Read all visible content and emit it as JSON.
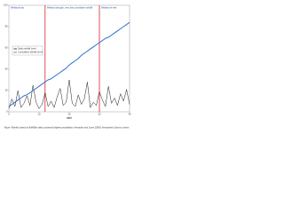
{
  "chart_data": {
    "type": "line",
    "annotations": [
      "Wetlands dry",
      "Wetland drought, very low cumulative rainfall",
      "Wetland re-wet"
    ],
    "x_label": "date",
    "caption": "Figure: Rainfall, based on BoM/Bite daily (continued) highest precipitation; Alexander and Jones (2000); Atmospheric Science Letters",
    "x": [
      0,
      1,
      2,
      3,
      4,
      5,
      6,
      7,
      8,
      9,
      10,
      11,
      12,
      13,
      14,
      15,
      16,
      17,
      18,
      19,
      20,
      21,
      22,
      23,
      24,
      25,
      26,
      27,
      28,
      29,
      30,
      31,
      32,
      33,
      34,
      35,
      36,
      37,
      38,
      39,
      40
    ],
    "series": [
      {
        "name": "Daily rainfall (mm)",
        "color": "#1a1a1a",
        "values": [
          3,
          12,
          5,
          20,
          4,
          8,
          15,
          6,
          25,
          9,
          3,
          7,
          18,
          5,
          10,
          4,
          14,
          22,
          6,
          9,
          30,
          8,
          5,
          16,
          7,
          12,
          28,
          4,
          9,
          6,
          19,
          11,
          5,
          24,
          8,
          13,
          6,
          17,
          10,
          21,
          7
        ]
      },
      {
        "name": "Cumulative rainfall (mm)",
        "color": "#2a6fc9",
        "values": [
          5,
          7,
          9,
          11,
          13,
          15,
          16,
          18,
          20,
          22,
          24,
          26,
          28,
          30,
          31,
          33,
          35,
          37,
          39,
          41,
          44,
          46,
          48,
          50,
          53,
          55,
          57,
          59,
          61,
          63,
          65,
          67,
          69,
          70,
          72,
          74,
          76,
          78,
          80,
          82,
          84
        ]
      }
    ],
    "vlines": [
      12,
      30
    ],
    "vline_color": "#d62728",
    "xlim": [
      0,
      40
    ],
    "xticks": [
      0,
      10,
      20,
      30,
      40
    ],
    "ylim": [
      0,
      100
    ],
    "yticks": [
      0,
      20,
      40,
      60,
      80,
      100
    ],
    "grid": false
  }
}
